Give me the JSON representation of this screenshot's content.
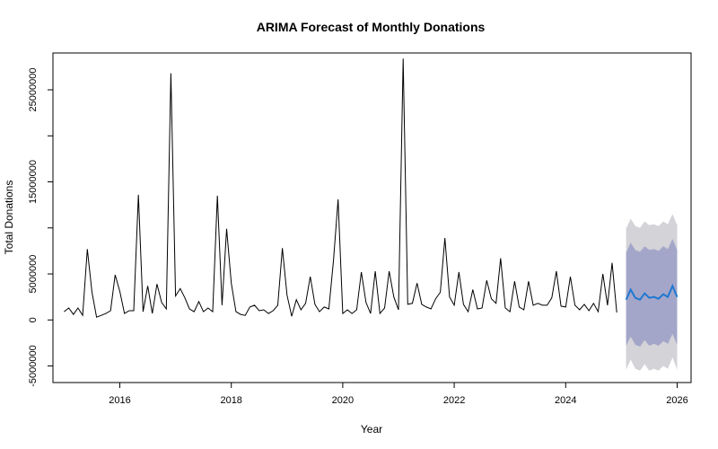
{
  "chart_data": {
    "type": "line",
    "title": "ARIMA Forecast of Monthly Donations",
    "xlabel": "Year",
    "ylabel": "Total Donations",
    "xlim": [
      2014.8,
      2026.25
    ],
    "ylim": [
      -6800000,
      29000000
    ],
    "x_ticks": [
      2016,
      2018,
      2020,
      2022,
      2024,
      2026
    ],
    "x_tick_labels": [
      "2016",
      "2018",
      "2020",
      "2022",
      "2024",
      "2026"
    ],
    "y_ticks": [
      -5000000,
      0,
      5000000,
      15000000,
      25000000
    ],
    "y_tick_labels": [
      "-5000000",
      "0",
      "5000000",
      "15000000",
      "25000000"
    ],
    "y_minor_ticks": [
      10000000,
      20000000
    ],
    "grid": false,
    "colors": {
      "history": "#000000",
      "forecast_mean": "#1f78d1",
      "band_80": "#a4a6c9",
      "band_95": "#d3d3d8"
    },
    "history": {
      "name": "",
      "start": 2015.0,
      "step": 0.0833333,
      "values": [
        900000,
        1300000,
        600000,
        1300000,
        500000,
        7700000,
        3000000,
        300000,
        500000,
        700000,
        1000000,
        4900000,
        3100000,
        700000,
        1000000,
        1000000,
        13600000,
        900000,
        3700000,
        700000,
        3900000,
        1900000,
        1200000,
        26800000,
        2600000,
        3400000,
        2400000,
        1200000,
        900000,
        2000000,
        900000,
        1300000,
        900000,
        13500000,
        1600000,
        9900000,
        4000000,
        900000,
        600000,
        500000,
        1400000,
        1600000,
        1000000,
        1100000,
        700000,
        1000000,
        1600000,
        7800000,
        2700000,
        400000,
        2200000,
        1100000,
        1800000,
        4700000,
        1700000,
        900000,
        1400000,
        1200000,
        6500000,
        13100000,
        700000,
        1100000,
        700000,
        1100000,
        5200000,
        1900000,
        700000,
        5300000,
        700000,
        1300000,
        5300000,
        2500000,
        1100000,
        28400000,
        1700000,
        1800000,
        4000000,
        1700000,
        1400000,
        1200000,
        2300000,
        3000000,
        8900000,
        2500000,
        1600000,
        5200000,
        1700000,
        900000,
        3300000,
        1200000,
        1300000,
        4300000,
        2300000,
        1800000,
        6700000,
        1300000,
        900000,
        4200000,
        1400000,
        1100000,
        4200000,
        1600000,
        1800000,
        1600000,
        1600000,
        2400000,
        5300000,
        1500000,
        1400000,
        4700000,
        1600000,
        1100000,
        1700000,
        1000000,
        1800000,
        900000,
        5000000,
        1600000,
        6200000,
        800000
      ]
    },
    "forecast": {
      "start": 2025.0833333,
      "step": 0.0833333,
      "mean": [
        2200000,
        3300000,
        2400000,
        2200000,
        2900000,
        2400000,
        2500000,
        2300000,
        2800000,
        2500000,
        3700000,
        2500000
      ],
      "lower_80": [
        -2800000,
        -1800000,
        -2700000,
        -2900000,
        -2200000,
        -2800000,
        -2600000,
        -2800000,
        -2300000,
        -2600000,
        -1500000,
        -2700000
      ],
      "upper_80": [
        7300000,
        8400000,
        7600000,
        7400000,
        8000000,
        7600000,
        7700000,
        7500000,
        8000000,
        7700000,
        8800000,
        7600000
      ],
      "lower_95": [
        -5400000,
        -4300000,
        -5300000,
        -5500000,
        -4800000,
        -5500000,
        -5300000,
        -5500000,
        -5000000,
        -5300000,
        -4100000,
        -5400000
      ],
      "upper_95": [
        9900000,
        11000000,
        10200000,
        10000000,
        10700000,
        10300000,
        10400000,
        10200000,
        10700000,
        10400000,
        11500000,
        10300000
      ]
    }
  }
}
